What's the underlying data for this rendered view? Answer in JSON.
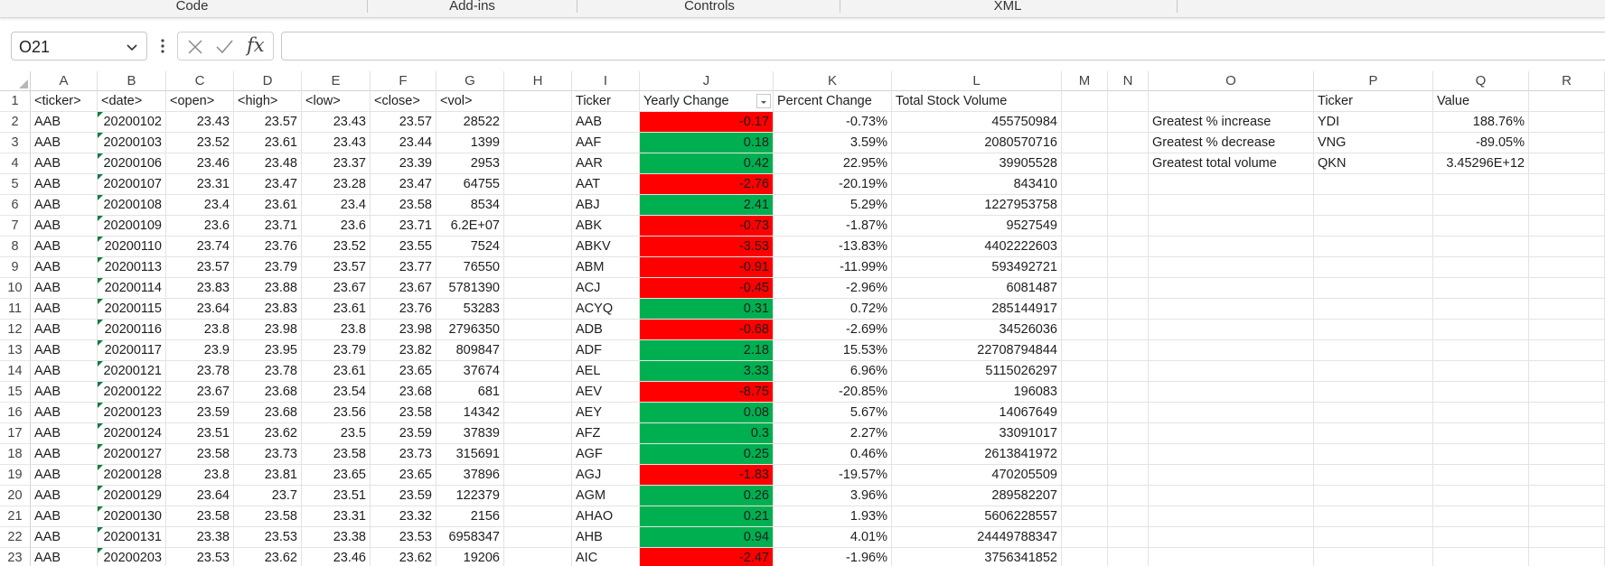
{
  "ribbon": {
    "groups": [
      "Code",
      "Add-ins",
      "Controls",
      "XML"
    ]
  },
  "formula_bar": {
    "name_box": "O21",
    "formula": "",
    "fx_label": "fx"
  },
  "columns": [
    "A",
    "B",
    "C",
    "D",
    "E",
    "F",
    "G",
    "H",
    "I",
    "J",
    "K",
    "L",
    "M",
    "N",
    "O",
    "P",
    "Q",
    "R"
  ],
  "header_row": {
    "A": "<ticker>",
    "B": "<date>",
    "C": "<open>",
    "D": "<high>",
    "E": "<low>",
    "F": "<close>",
    "G": "<vol>",
    "I": "Ticker",
    "J": "Yearly Change",
    "K": "Percent Change",
    "L": "Total Stock Volume",
    "P": "Ticker",
    "Q": "Value"
  },
  "raw_rows": [
    [
      "AAB",
      "20200102",
      "23.43",
      "23.57",
      "23.43",
      "23.57",
      "28522"
    ],
    [
      "AAB",
      "20200103",
      "23.52",
      "23.61",
      "23.43",
      "23.44",
      "1399"
    ],
    [
      "AAB",
      "20200106",
      "23.46",
      "23.48",
      "23.37",
      "23.39",
      "2953"
    ],
    [
      "AAB",
      "20200107",
      "23.31",
      "23.47",
      "23.28",
      "23.47",
      "64755"
    ],
    [
      "AAB",
      "20200108",
      "23.4",
      "23.61",
      "23.4",
      "23.58",
      "8534"
    ],
    [
      "AAB",
      "20200109",
      "23.6",
      "23.71",
      "23.6",
      "23.71",
      "6.2E+07"
    ],
    [
      "AAB",
      "20200110",
      "23.74",
      "23.76",
      "23.52",
      "23.55",
      "7524"
    ],
    [
      "AAB",
      "20200113",
      "23.57",
      "23.79",
      "23.57",
      "23.77",
      "76550"
    ],
    [
      "AAB",
      "20200114",
      "23.83",
      "23.88",
      "23.67",
      "23.67",
      "5781390"
    ],
    [
      "AAB",
      "20200115",
      "23.64",
      "23.83",
      "23.61",
      "23.76",
      "53283"
    ],
    [
      "AAB",
      "20200116",
      "23.8",
      "23.98",
      "23.8",
      "23.98",
      "2796350"
    ],
    [
      "AAB",
      "20200117",
      "23.9",
      "23.95",
      "23.79",
      "23.82",
      "809847"
    ],
    [
      "AAB",
      "20200121",
      "23.78",
      "23.78",
      "23.61",
      "23.65",
      "37674"
    ],
    [
      "AAB",
      "20200122",
      "23.67",
      "23.68",
      "23.54",
      "23.68",
      "681"
    ],
    [
      "AAB",
      "20200123",
      "23.59",
      "23.68",
      "23.56",
      "23.58",
      "14342"
    ],
    [
      "AAB",
      "20200124",
      "23.51",
      "23.62",
      "23.5",
      "23.59",
      "37839"
    ],
    [
      "AAB",
      "20200127",
      "23.58",
      "23.73",
      "23.58",
      "23.73",
      "315691"
    ],
    [
      "AAB",
      "20200128",
      "23.8",
      "23.81",
      "23.65",
      "23.65",
      "37896"
    ],
    [
      "AAB",
      "20200129",
      "23.64",
      "23.7",
      "23.51",
      "23.59",
      "122379"
    ],
    [
      "AAB",
      "20200130",
      "23.58",
      "23.58",
      "23.31",
      "23.32",
      "2156"
    ],
    [
      "AAB",
      "20200131",
      "23.38",
      "23.53",
      "23.38",
      "23.53",
      "6958347"
    ],
    [
      "AAB",
      "20200203",
      "23.53",
      "23.62",
      "23.46",
      "23.62",
      "19206"
    ]
  ],
  "summary_rows": [
    [
      "AAB",
      "-0.17",
      "-0.73%",
      "455750984"
    ],
    [
      "AAF",
      "0.18",
      "3.59%",
      "2080570716"
    ],
    [
      "AAR",
      "0.42",
      "22.95%",
      "39905528"
    ],
    [
      "AAT",
      "-2.76",
      "-20.19%",
      "843410"
    ],
    [
      "ABJ",
      "2.41",
      "5.29%",
      "1227953758"
    ],
    [
      "ABK",
      "-0.73",
      "-1.87%",
      "9527549"
    ],
    [
      "ABKV",
      "-3.53",
      "-13.83%",
      "4402222603"
    ],
    [
      "ABM",
      "-0.91",
      "-11.99%",
      "593492721"
    ],
    [
      "ACJ",
      "-0.45",
      "-2.96%",
      "6081487"
    ],
    [
      "ACYQ",
      "0.31",
      "0.72%",
      "285144917"
    ],
    [
      "ADB",
      "-0.68",
      "-2.69%",
      "34526036"
    ],
    [
      "ADF",
      "2.18",
      "15.53%",
      "22708794844"
    ],
    [
      "AEL",
      "3.33",
      "6.96%",
      "5115026297"
    ],
    [
      "AEV",
      "-8.75",
      "-20.85%",
      "196083"
    ],
    [
      "AEY",
      "0.08",
      "5.67%",
      "14067649"
    ],
    [
      "AFZ",
      "0.3",
      "2.27%",
      "33091017"
    ],
    [
      "AGF",
      "0.25",
      "0.46%",
      "2613841972"
    ],
    [
      "AGJ",
      "-1.83",
      "-19.57%",
      "470205509"
    ],
    [
      "AGM",
      "0.26",
      "3.96%",
      "289582207"
    ],
    [
      "AHAO",
      "0.21",
      "1.93%",
      "5606228557"
    ],
    [
      "AHB",
      "0.94",
      "4.01%",
      "24449788347"
    ],
    [
      "AIC",
      "-2.47",
      "-1.96%",
      "3756341852"
    ]
  ],
  "greatest": [
    {
      "label": "Greatest % increase",
      "ticker": "YDI",
      "value": "188.76%"
    },
    {
      "label": "Greatest % decrease",
      "ticker": "VNG",
      "value": "-89.05%"
    },
    {
      "label": "Greatest total volume",
      "ticker": "QKN",
      "value": "3.45296E+12"
    }
  ],
  "colors": {
    "negative_fill": "#ff0000",
    "positive_fill": "#00b050",
    "excel_green": "#107c41"
  },
  "rows_visible": 23
}
